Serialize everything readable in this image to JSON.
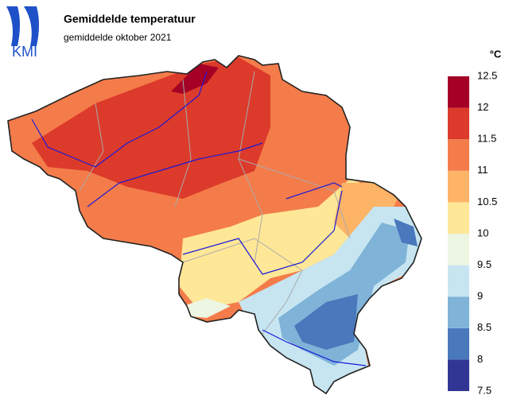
{
  "header": {
    "logo": "KMI",
    "title": "Gemiddelde temperatuur",
    "subtitle": "gemiddelde oktober 2021"
  },
  "legend": {
    "unit": "°C",
    "ticks": [
      7.5,
      8,
      8.5,
      9,
      9.5,
      10,
      10.5,
      11,
      11.5,
      12,
      12.5
    ],
    "colors": [
      "#313695",
      "#4a78bd",
      "#7fb3d8",
      "#c6e5f1",
      "#ecf6e2",
      "#fee797",
      "#fdb466",
      "#f47c4a",
      "#dc3a2b",
      "#a50026"
    ]
  }
}
